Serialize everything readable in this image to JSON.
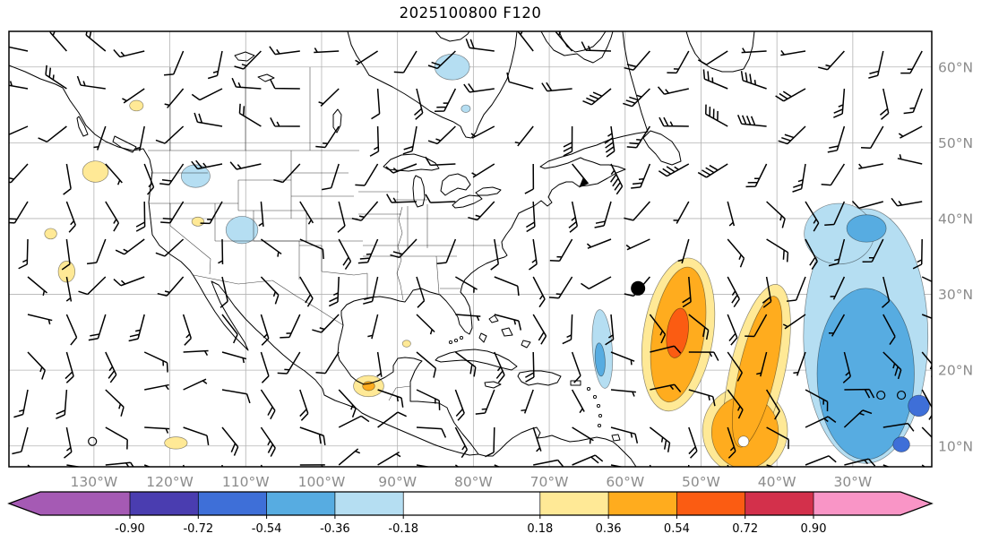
{
  "title": "2025100800 F120",
  "axes": {
    "lon_tick_labels": [
      "130°W",
      "120°W",
      "110°W",
      "100°W",
      "90°W",
      "80°W",
      "70°W",
      "60°W",
      "50°W",
      "40°W",
      "30°W"
    ],
    "lon_tick_values": [
      -130,
      -120,
      -110,
      -100,
      -90,
      -80,
      -70,
      -60,
      -50,
      -40,
      -30
    ],
    "lat_tick_labels": [
      "60°N",
      "50°N",
      "40°N",
      "30°N",
      "20°N",
      "10°N"
    ],
    "lat_tick_values": [
      60,
      50,
      40,
      30,
      20,
      10
    ],
    "tick_label_color": "#8c8c8c"
  },
  "colorbar": {
    "tick_labels": [
      "-0.90",
      "-0.72",
      "-0.54",
      "-0.36",
      "-0.18",
      "0.18",
      "0.36",
      "0.54",
      "0.72",
      "0.90"
    ],
    "tick_values": [
      -0.9,
      -0.72,
      -0.54,
      -0.36,
      -0.18,
      0.18,
      0.36,
      0.54,
      0.72,
      0.9
    ],
    "colors": [
      "#a55ab4",
      "#4a3db0",
      "#3e6fd8",
      "#57ace1",
      "#b5def2",
      "#ffffff",
      "#ffe996",
      "#ffac1e",
      "#fb5c12",
      "#d3304b",
      "#f995c6"
    ],
    "extend": "both"
  },
  "chart_data": {
    "type": "heatmap",
    "subtype": "filled-contour anomaly map with wind barbs over North America / Atlantic",
    "title": "2025100800 F120",
    "projection": "plate-carree",
    "lon_range_deg_east": [
      -141.2,
      -19.6
    ],
    "lat_range_deg_north": [
      7.4,
      64.7
    ],
    "grid": "on",
    "levels": [
      -0.9,
      -0.72,
      -0.54,
      -0.36,
      -0.18,
      0.18,
      0.36,
      0.54,
      0.72,
      0.9
    ],
    "marker": {
      "label": "storm-position-dot",
      "lon": -58.3,
      "lat": 30.8,
      "color": "#000000"
    },
    "anomaly_regions": [
      {
        "level": 4,
        "lon": -82.8,
        "lat": 60.0,
        "rlon": 2.3,
        "rlat": 1.7,
        "rot": 0
      },
      {
        "level": 4,
        "lon": -81.0,
        "lat": 54.5,
        "rlon": 0.6,
        "rlat": 0.5,
        "rot": 0
      },
      {
        "level": 4,
        "lon": -116.6,
        "lat": 45.6,
        "rlon": 1.9,
        "rlat": 1.5,
        "rot": 0
      },
      {
        "level": 4,
        "lon": -110.5,
        "lat": 38.5,
        "rlon": 2.1,
        "rlat": 1.8,
        "rot": 0
      },
      {
        "level": 4,
        "lon": -63.0,
        "lat": 22.8,
        "rlon": 1.3,
        "rlat": 5.2,
        "rot": -4
      },
      {
        "level": 4,
        "lon": -28.3,
        "lat": 24.5,
        "rlon": 8.2,
        "rlat": 16.8,
        "rot": 0
      },
      {
        "level": 4,
        "lon": -31.8,
        "lat": 38.0,
        "rlon": 4.6,
        "rlat": 4.0,
        "rot": 0
      },
      {
        "level": 3,
        "lon": -63.3,
        "lat": 21.4,
        "rlon": 0.65,
        "rlat": 2.2,
        "rot": -4
      },
      {
        "level": 3,
        "lon": -28.3,
        "lat": 19.5,
        "rlon": 6.4,
        "rlat": 11.3,
        "rot": 0
      },
      {
        "level": 3,
        "lon": -28.2,
        "lat": 38.7,
        "rlon": 2.6,
        "rlat": 1.8,
        "rot": 0
      },
      {
        "level": 2,
        "lon": -21.3,
        "lat": 15.3,
        "rlon": 1.4,
        "rlat": 1.4,
        "rot": 0
      },
      {
        "level": 2,
        "lon": -23.6,
        "lat": 10.2,
        "rlon": 1.1,
        "rlat": 1.0,
        "rot": 0
      },
      {
        "level": 6,
        "lon": -124.4,
        "lat": 54.9,
        "rlon": 0.9,
        "rlat": 0.7,
        "rot": 0
      },
      {
        "level": 6,
        "lon": -129.8,
        "lat": 46.2,
        "rlon": 1.7,
        "rlat": 1.4,
        "rot": 0
      },
      {
        "level": 6,
        "lon": -135.7,
        "lat": 38.0,
        "rlon": 0.8,
        "rlat": 0.7,
        "rot": 0
      },
      {
        "level": 6,
        "lon": -133.6,
        "lat": 33.0,
        "rlon": 1.1,
        "rlat": 1.4,
        "rot": 0
      },
      {
        "level": 6,
        "lon": -116.3,
        "lat": 39.6,
        "rlon": 0.8,
        "rlat": 0.6,
        "rot": 0
      },
      {
        "level": 6,
        "lon": -119.2,
        "lat": 10.4,
        "rlon": 1.5,
        "rlat": 0.8,
        "rot": 0
      },
      {
        "level": 6,
        "lon": -93.8,
        "lat": 17.9,
        "rlon": 2.0,
        "rlat": 1.4,
        "rot": 0
      },
      {
        "level": 6,
        "lon": -88.8,
        "lat": 23.5,
        "rlon": 0.55,
        "rlat": 0.45,
        "rot": 0
      },
      {
        "level": 6,
        "lon": -53.0,
        "lat": 24.7,
        "rlon": 4.6,
        "rlat": 10.2,
        "rot": 9
      },
      {
        "level": 6,
        "lon": -44.2,
        "lat": 12.0,
        "rlon": 5.6,
        "rlat": 5.8,
        "rot": 0
      },
      {
        "level": 6,
        "lon": -42.6,
        "lat": 19.8,
        "rlon": 3.6,
        "rlat": 11.8,
        "rot": 13
      },
      {
        "level": 7,
        "lon": -93.8,
        "lat": 17.9,
        "rlon": 0.8,
        "rlat": 0.6,
        "rot": 0
      },
      {
        "level": 7,
        "lon": -53.0,
        "lat": 24.7,
        "rlon": 3.4,
        "rlat": 9.0,
        "rot": 9
      },
      {
        "level": 7,
        "lon": -44.2,
        "lat": 11.8,
        "rlon": 4.4,
        "rlat": 4.8,
        "rot": 0
      },
      {
        "level": 7,
        "lon": -42.6,
        "lat": 19.8,
        "rlon": 2.4,
        "rlat": 10.2,
        "rot": 13
      },
      {
        "level": 8,
        "lon": -53.1,
        "lat": 24.9,
        "rlon": 1.4,
        "rlat": 3.3,
        "rot": 8
      },
      {
        "level": 5,
        "lon": -44.4,
        "lat": 10.6,
        "rlon": 0.7,
        "rlat": 0.7,
        "rot": 0
      }
    ],
    "calm_wind_circles": [
      {
        "lon": -130.2,
        "lat": 10.6
      },
      {
        "lon": -26.3,
        "lat": 16.7
      },
      {
        "lon": -23.6,
        "lat": 16.7
      }
    ],
    "wind_barbs": {
      "note": "black synoptic wind barbs on a ~5 degree grid; westerlies in mid-latitudes with 50-kt flags near Atlantic Canada, easterlies in the tropics (directions approximate)",
      "color": "#000000"
    }
  }
}
